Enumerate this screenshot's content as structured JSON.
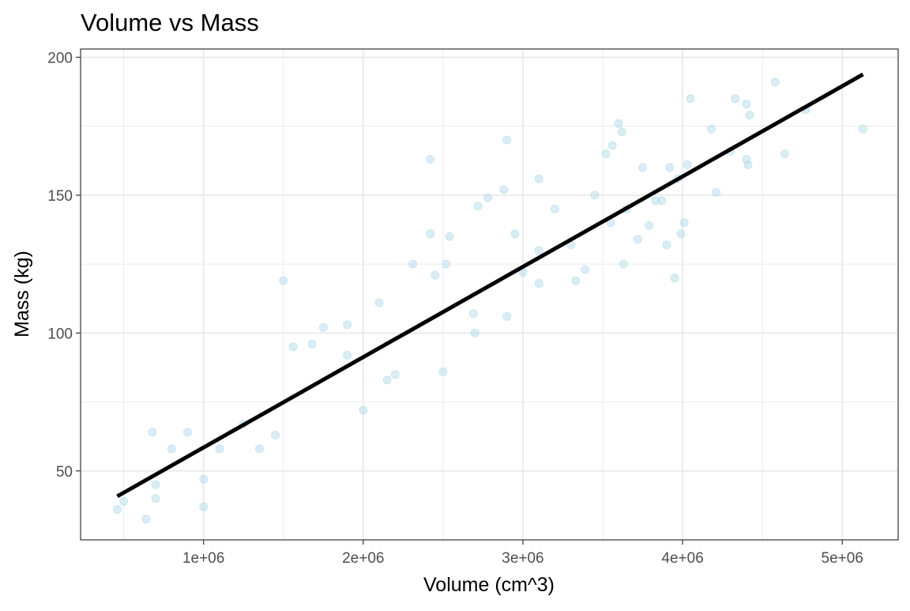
{
  "chart_data": {
    "type": "scatter",
    "title": "Volume vs Mass",
    "xlabel": "Volume (cm^3)",
    "ylabel": "Mass (kg)",
    "xlim": [
      230000,
      5350000
    ],
    "ylim": [
      25,
      203
    ],
    "xticks": [
      {
        "value": 1000000,
        "label": "1e+06"
      },
      {
        "value": 2000000,
        "label": "2e+06"
      },
      {
        "value": 3000000,
        "label": "3e+06"
      },
      {
        "value": 4000000,
        "label": "4e+06"
      },
      {
        "value": 5000000,
        "label": "5e+06"
      }
    ],
    "yticks": [
      {
        "value": 50,
        "label": "50"
      },
      {
        "value": 100,
        "label": "100"
      },
      {
        "value": 150,
        "label": "150"
      },
      {
        "value": 200,
        "label": "200"
      }
    ],
    "grid": true,
    "legend": "none",
    "colors": {
      "points": "#add8e6",
      "fit_line": "#000000",
      "grid": "#ebebeb",
      "panel_border": "#333333",
      "tick_label": "#4d4d4d"
    },
    "fit_line": {
      "x": [
        460000,
        5130000
      ],
      "y": [
        40.8,
        193.8
      ]
    },
    "series": [
      {
        "points": [
          [
            460000,
            36
          ],
          [
            500000,
            39
          ],
          [
            640000,
            32.5
          ],
          [
            680000,
            64
          ],
          [
            700000,
            40
          ],
          [
            1000000,
            37
          ],
          [
            1500000,
            119
          ],
          [
            1900000,
            103
          ],
          [
            2420000,
            163
          ],
          [
            2900000,
            170
          ],
          [
            3600000,
            176
          ],
          [
            3620000,
            173
          ],
          [
            4050000,
            185
          ],
          [
            4580000,
            191
          ],
          [
            4770000,
            181
          ],
          [
            5130000,
            174
          ],
          [
            4640000,
            165
          ],
          [
            4400000,
            183
          ],
          [
            4420000,
            179
          ],
          [
            4330000,
            185
          ],
          [
            4400000,
            163
          ],
          [
            4410000,
            161
          ],
          [
            4180000,
            174
          ],
          [
            4300000,
            166
          ],
          [
            4210000,
            151
          ],
          [
            4030000,
            161
          ],
          [
            3970000,
            156
          ],
          [
            3920000,
            160
          ],
          [
            3870000,
            148
          ],
          [
            4010000,
            140
          ],
          [
            3990000,
            136
          ],
          [
            3830000,
            148
          ],
          [
            3790000,
            139
          ],
          [
            3900000,
            132
          ],
          [
            3720000,
            134
          ],
          [
            3630000,
            125
          ],
          [
            3390000,
            123
          ],
          [
            3330000,
            119
          ],
          [
            2720000,
            146
          ],
          [
            2950000,
            136
          ],
          [
            2900000,
            106
          ],
          [
            2690000,
            107
          ],
          [
            2500000,
            86
          ],
          [
            2150000,
            83
          ],
          [
            2420000,
            136
          ],
          [
            2540000,
            135
          ],
          [
            3520000,
            165
          ],
          [
            3560000,
            168
          ],
          [
            3100000,
            156
          ],
          [
            3000000,
            122
          ],
          [
            2520000,
            125
          ],
          [
            2310000,
            125
          ],
          [
            3750000,
            160
          ],
          [
            3650000,
            145
          ],
          [
            2880000,
            152
          ],
          [
            2780000,
            149
          ],
          [
            3200000,
            145
          ],
          [
            1680000,
            96
          ],
          [
            1900000,
            92
          ],
          [
            1250000,
            67
          ],
          [
            1450000,
            63
          ],
          [
            1560000,
            95
          ],
          [
            2200000,
            85
          ],
          [
            2700000,
            100
          ],
          [
            3100000,
            118
          ],
          [
            800000,
            58
          ],
          [
            1100000,
            58
          ],
          [
            1350000,
            58
          ],
          [
            1000000,
            47
          ],
          [
            2000000,
            72
          ],
          [
            3950000,
            120
          ],
          [
            3300000,
            132
          ],
          [
            3450000,
            150
          ],
          [
            3550000,
            140
          ],
          [
            3100000,
            130
          ],
          [
            2450000,
            121
          ],
          [
            2100000,
            111
          ],
          [
            1750000,
            102
          ],
          [
            900000,
            64
          ],
          [
            700000,
            45
          ]
        ]
      }
    ]
  }
}
